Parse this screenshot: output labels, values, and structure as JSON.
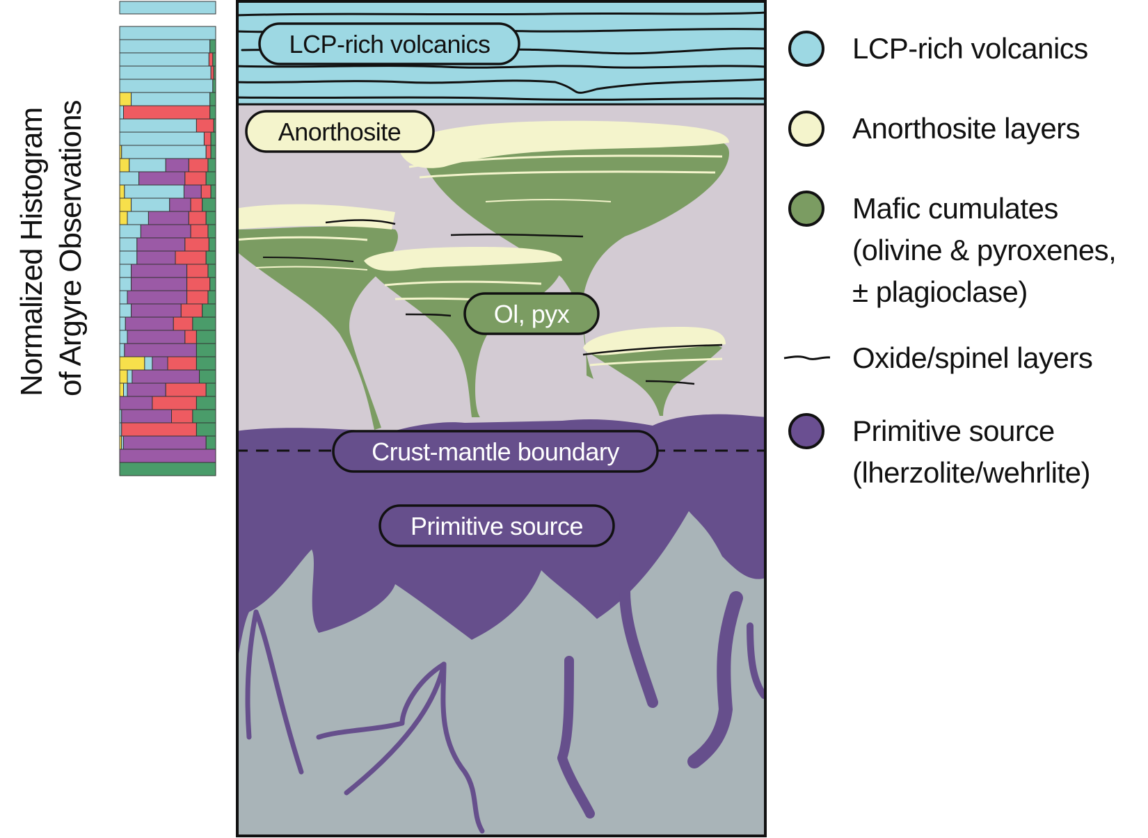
{
  "y_axis": {
    "line1": "Normalized Histogram",
    "line2": "of Argyre Observations"
  },
  "labels": {
    "volcanics": "LCP-rich volcanics",
    "anorthosite": "Anorthosite",
    "olpyx": "Ol, pyx",
    "boundary": "Crust-mantle boundary",
    "primitive": "Primitive source"
  },
  "legend": {
    "items": [
      {
        "key": "volcanics",
        "lines": [
          "LCP-rich volcanics"
        ],
        "color": "#9dd8e3"
      },
      {
        "key": "anorthosite",
        "lines": [
          "Anorthosite layers"
        ],
        "color": "#f4f4cc"
      },
      {
        "key": "mafic",
        "lines": [
          "Mafic cumulates",
          "(olivine & pyroxenes,",
          "± plagioclase)"
        ],
        "color": "#7b9c62"
      },
      {
        "key": "oxide",
        "lines": [
          "Oxide/spinel layers"
        ],
        "color": "#111111"
      },
      {
        "key": "primitive",
        "lines": [
          "Primitive source",
          "(lherzolite/wehrlite)"
        ],
        "color": "#6a4f91"
      }
    ]
  },
  "colors": {
    "volcanics": "#9dd8e3",
    "anorthosite": "#f4f4cc",
    "mafic": "#7b9c62",
    "primitive": "#6a4f91",
    "crust_bg": "#d3cbd3",
    "deep_bg": "#a9b4b8",
    "yellow": "#f7e04b",
    "red": "#ee5b61",
    "green": "#4a9c6a",
    "hist_purple": "#9b5aa6"
  },
  "histogram": {
    "category_order": [
      "yellow",
      "cyan",
      "purple",
      "red",
      "green"
    ],
    "rows": [
      [
        0.0,
        1.0,
        0.0,
        0.0,
        0.0
      ],
      [
        0.0,
        0.94,
        0.0,
        0.0,
        0.06
      ],
      [
        0.0,
        0.93,
        0.0,
        0.04,
        0.03
      ],
      [
        0.0,
        0.95,
        0.0,
        0.03,
        0.02
      ],
      [
        0.0,
        0.97,
        0.0,
        0.0,
        0.03
      ],
      [
        0.12,
        0.82,
        0.0,
        0.0,
        0.06
      ],
      [
        0.0,
        0.04,
        0.0,
        0.9,
        0.06
      ],
      [
        0.0,
        0.8,
        0.0,
        0.18,
        0.02
      ],
      [
        0.0,
        0.88,
        0.0,
        0.07,
        0.05
      ],
      [
        0.02,
        0.88,
        0.0,
        0.05,
        0.05
      ],
      [
        0.1,
        0.38,
        0.24,
        0.2,
        0.08
      ],
      [
        0.0,
        0.2,
        0.48,
        0.22,
        0.1
      ],
      [
        0.05,
        0.62,
        0.18,
        0.1,
        0.05
      ],
      [
        0.12,
        0.4,
        0.22,
        0.12,
        0.14
      ],
      [
        0.08,
        0.22,
        0.42,
        0.18,
        0.1
      ],
      [
        0.0,
        0.22,
        0.52,
        0.18,
        0.08
      ],
      [
        0.0,
        0.18,
        0.5,
        0.25,
        0.07
      ],
      [
        0.0,
        0.18,
        0.4,
        0.32,
        0.1
      ],
      [
        0.0,
        0.12,
        0.58,
        0.22,
        0.08
      ],
      [
        0.0,
        0.12,
        0.58,
        0.24,
        0.06
      ],
      [
        0.0,
        0.08,
        0.62,
        0.22,
        0.08
      ],
      [
        0.0,
        0.12,
        0.52,
        0.22,
        0.14
      ],
      [
        0.0,
        0.06,
        0.5,
        0.2,
        0.24
      ],
      [
        0.0,
        0.08,
        0.6,
        0.12,
        0.2
      ],
      [
        0.0,
        0.05,
        0.75,
        0.0,
        0.2
      ],
      [
        0.26,
        0.08,
        0.16,
        0.3,
        0.2
      ],
      [
        0.08,
        0.05,
        0.7,
        0.0,
        0.17
      ],
      [
        0.04,
        0.04,
        0.4,
        0.42,
        0.1
      ],
      [
        0.0,
        0.0,
        0.34,
        0.46,
        0.2
      ],
      [
        0.0,
        0.02,
        0.52,
        0.22,
        0.24
      ],
      [
        0.0,
        0.02,
        0.0,
        0.78,
        0.2
      ],
      [
        0.02,
        0.02,
        0.86,
        0.0,
        0.1
      ],
      [
        0.0,
        0.0,
        1.0,
        0.0,
        0.0
      ],
      [
        0.0,
        0.0,
        0.0,
        0.0,
        1.0
      ]
    ]
  }
}
